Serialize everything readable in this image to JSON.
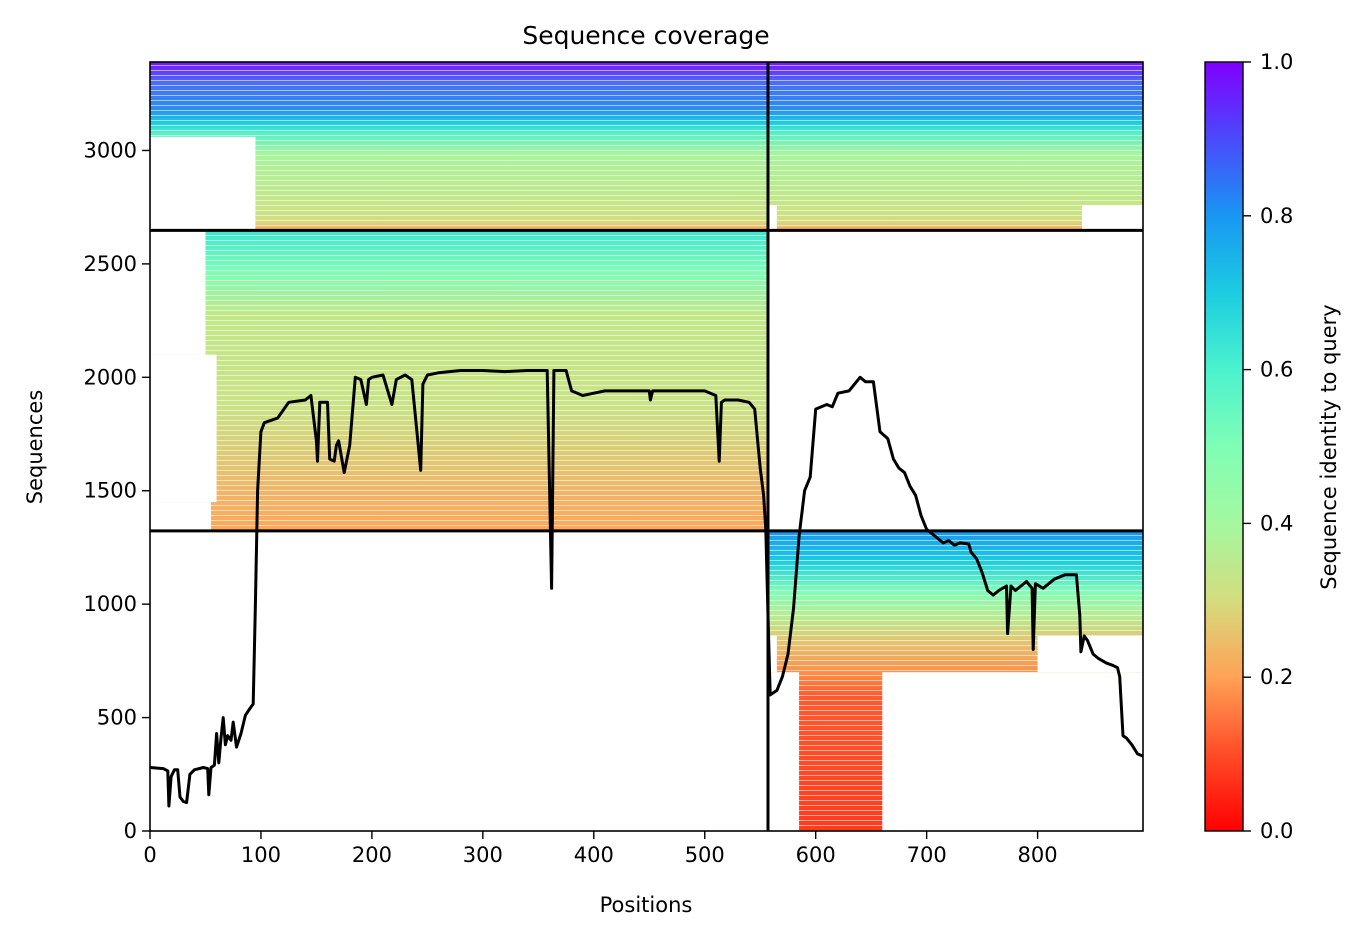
{
  "chart_data": {
    "type": "heatmap",
    "title": "Sequence coverage",
    "xlabel": "Positions",
    "ylabel": "Sequences",
    "xlim": [
      0,
      895
    ],
    "ylim": [
      0,
      3390
    ],
    "xticks": [
      0,
      100,
      200,
      300,
      400,
      500,
      600,
      700,
      800
    ],
    "yticks": [
      0,
      500,
      1000,
      1500,
      2000,
      2500,
      3000
    ],
    "grid": false,
    "colormap": "rainbow_r",
    "colorbar": {
      "label": "Sequence identity to query",
      "range": [
        0,
        1
      ],
      "ticks": [
        "0.0",
        "0.2",
        "0.4",
        "0.6",
        "0.8",
        "1.0"
      ]
    },
    "block_dividers": {
      "vertical_at_position": 557,
      "horizontal_at_sequence": [
        1323,
        2648
      ]
    },
    "coverage_blocks": [
      {
        "name": "lower-right",
        "x": [
          557,
          895
        ],
        "y": [
          0,
          1323
        ],
        "identity_range": [
          0.05,
          0.75
        ]
      },
      {
        "name": "middle-left",
        "x": [
          0,
          557
        ],
        "y": [
          1323,
          2648
        ],
        "identity_range": [
          0.22,
          0.65
        ]
      },
      {
        "name": "upper-left",
        "x": [
          0,
          557
        ],
        "y": [
          2648,
          3390
        ],
        "identity_range": [
          0.3,
          1.0
        ]
      },
      {
        "name": "upper-right",
        "x": [
          557,
          895
        ],
        "y": [
          2648,
          3390
        ],
        "identity_range": [
          0.3,
          1.0
        ]
      }
    ],
    "series": [
      {
        "type": "line",
        "color": "#000000",
        "points": [
          [
            0,
            280
          ],
          [
            12,
            275
          ],
          [
            16,
            265
          ],
          [
            17,
            110
          ],
          [
            19,
            240
          ],
          [
            22,
            270
          ],
          [
            25,
            270
          ],
          [
            27,
            150
          ],
          [
            30,
            130
          ],
          [
            33,
            125
          ],
          [
            36,
            250
          ],
          [
            40,
            270
          ],
          [
            48,
            280
          ],
          [
            52,
            275
          ],
          [
            53,
            160
          ],
          [
            55,
            280
          ],
          [
            58,
            290
          ],
          [
            60,
            430
          ],
          [
            62,
            300
          ],
          [
            64,
            410
          ],
          [
            66,
            500
          ],
          [
            68,
            380
          ],
          [
            70,
            420
          ],
          [
            73,
            400
          ],
          [
            75,
            480
          ],
          [
            78,
            370
          ],
          [
            82,
            430
          ],
          [
            86,
            510
          ],
          [
            90,
            540
          ],
          [
            93,
            560
          ],
          [
            95,
            1000
          ],
          [
            97,
            1500
          ],
          [
            100,
            1760
          ],
          [
            103,
            1800
          ],
          [
            115,
            1820
          ],
          [
            125,
            1890
          ],
          [
            140,
            1900
          ],
          [
            145,
            1920
          ],
          [
            150,
            1720
          ],
          [
            151,
            1630
          ],
          [
            153,
            1890
          ],
          [
            160,
            1890
          ],
          [
            162,
            1640
          ],
          [
            166,
            1630
          ],
          [
            168,
            1700
          ],
          [
            170,
            1720
          ],
          [
            175,
            1580
          ],
          [
            180,
            1700
          ],
          [
            185,
            2000
          ],
          [
            190,
            1990
          ],
          [
            195,
            1880
          ],
          [
            197,
            1990
          ],
          [
            200,
            2000
          ],
          [
            210,
            2010
          ],
          [
            218,
            1880
          ],
          [
            222,
            1990
          ],
          [
            230,
            2010
          ],
          [
            236,
            1990
          ],
          [
            244,
            1590
          ],
          [
            246,
            1970
          ],
          [
            250,
            2010
          ],
          [
            260,
            2020
          ],
          [
            280,
            2030
          ],
          [
            300,
            2030
          ],
          [
            320,
            2025
          ],
          [
            340,
            2030
          ],
          [
            358,
            2030
          ],
          [
            362,
            1070
          ],
          [
            364,
            2030
          ],
          [
            375,
            2030
          ],
          [
            380,
            1940
          ],
          [
            390,
            1920
          ],
          [
            400,
            1930
          ],
          [
            410,
            1940
          ],
          [
            450,
            1940
          ],
          [
            451,
            1900
          ],
          [
            453,
            1940
          ],
          [
            500,
            1940
          ],
          [
            510,
            1920
          ],
          [
            513,
            1630
          ],
          [
            515,
            1890
          ],
          [
            518,
            1900
          ],
          [
            530,
            1900
          ],
          [
            540,
            1890
          ],
          [
            545,
            1860
          ],
          [
            550,
            1600
          ],
          [
            553,
            1480
          ],
          [
            555,
            1330
          ],
          [
            557,
            950
          ],
          [
            559,
            600
          ],
          [
            562,
            610
          ],
          [
            565,
            620
          ],
          [
            570,
            680
          ],
          [
            575,
            780
          ],
          [
            580,
            980
          ],
          [
            585,
            1300
          ],
          [
            590,
            1500
          ],
          [
            595,
            1560
          ],
          [
            600,
            1860
          ],
          [
            610,
            1880
          ],
          [
            615,
            1870
          ],
          [
            620,
            1930
          ],
          [
            630,
            1940
          ],
          [
            640,
            2000
          ],
          [
            645,
            1980
          ],
          [
            652,
            1980
          ],
          [
            658,
            1760
          ],
          [
            665,
            1730
          ],
          [
            670,
            1640
          ],
          [
            675,
            1600
          ],
          [
            680,
            1580
          ],
          [
            685,
            1520
          ],
          [
            690,
            1480
          ],
          [
            695,
            1390
          ],
          [
            700,
            1330
          ],
          [
            705,
            1310
          ],
          [
            710,
            1290
          ],
          [
            715,
            1270
          ],
          [
            720,
            1280
          ],
          [
            725,
            1260
          ],
          [
            730,
            1270
          ],
          [
            738,
            1265
          ],
          [
            740,
            1230
          ],
          [
            745,
            1200
          ],
          [
            750,
            1140
          ],
          [
            755,
            1060
          ],
          [
            760,
            1040
          ],
          [
            765,
            1060
          ],
          [
            772,
            1080
          ],
          [
            773,
            870
          ],
          [
            776,
            1080
          ],
          [
            780,
            1060
          ],
          [
            790,
            1100
          ],
          [
            795,
            1070
          ],
          [
            796,
            800
          ],
          [
            798,
            1090
          ],
          [
            805,
            1070
          ],
          [
            815,
            1110
          ],
          [
            825,
            1130
          ],
          [
            835,
            1130
          ],
          [
            838,
            950
          ],
          [
            839,
            790
          ],
          [
            842,
            860
          ],
          [
            845,
            840
          ],
          [
            850,
            780
          ],
          [
            855,
            760
          ],
          [
            862,
            740
          ],
          [
            868,
            730
          ],
          [
            872,
            720
          ],
          [
            874,
            680
          ],
          [
            877,
            420
          ],
          [
            880,
            410
          ],
          [
            885,
            380
          ],
          [
            890,
            340
          ],
          [
            895,
            330
          ]
        ]
      }
    ]
  }
}
